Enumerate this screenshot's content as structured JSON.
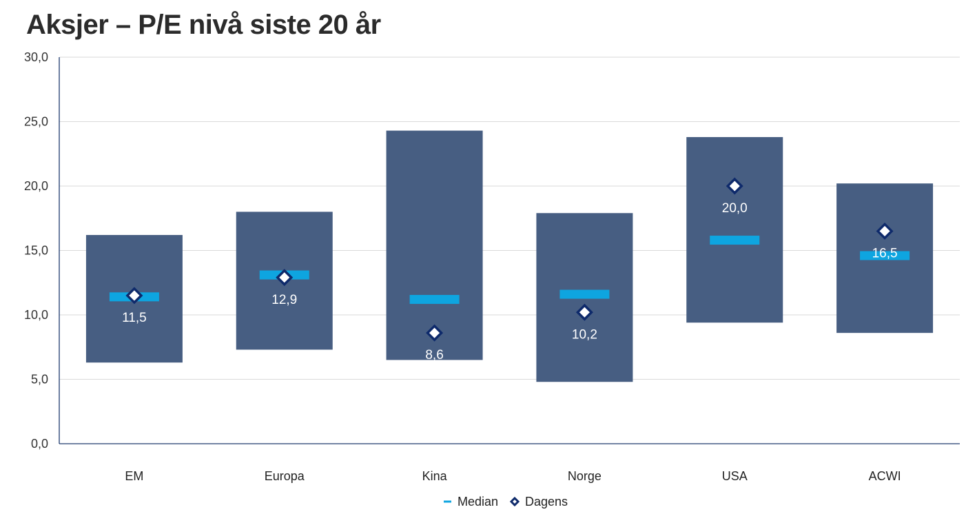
{
  "chart_data": {
    "type": "bar",
    "title": "Aksjer – P/E nivå siste 20 år",
    "categories": [
      "EM",
      "Europa",
      "Kina",
      "Norge",
      "USA",
      "ACWI"
    ],
    "range_low": [
      6.3,
      7.3,
      6.5,
      4.8,
      9.4,
      8.6
    ],
    "range_high": [
      16.2,
      18.0,
      24.3,
      17.9,
      23.8,
      20.2
    ],
    "series": [
      {
        "name": "Median",
        "values": [
          11.4,
          13.1,
          11.2,
          11.6,
          15.8,
          14.6
        ]
      },
      {
        "name": "Dagens",
        "values": [
          11.5,
          12.9,
          8.6,
          10.2,
          20.0,
          16.5
        ]
      }
    ],
    "data_labels": [
      "11,5",
      "12,9",
      "8,6",
      "10,2",
      "20,0",
      "16,5"
    ],
    "ylim": [
      0,
      30
    ],
    "yticks": [
      0,
      5,
      10,
      15,
      20,
      25,
      30
    ],
    "ytick_labels": [
      "0,0",
      "5,0",
      "10,0",
      "15,0",
      "20,0",
      "25,0",
      "30,0"
    ],
    "grid": true,
    "legend_position": "bottom-center",
    "colors": {
      "range_bar": "#475e82",
      "median": "#0ea5e0",
      "marker_edge": "#0e2a6b",
      "marker_fill": "#ffffff",
      "grid": "#d9d9d9",
      "axis": "#1d3a6e"
    }
  }
}
